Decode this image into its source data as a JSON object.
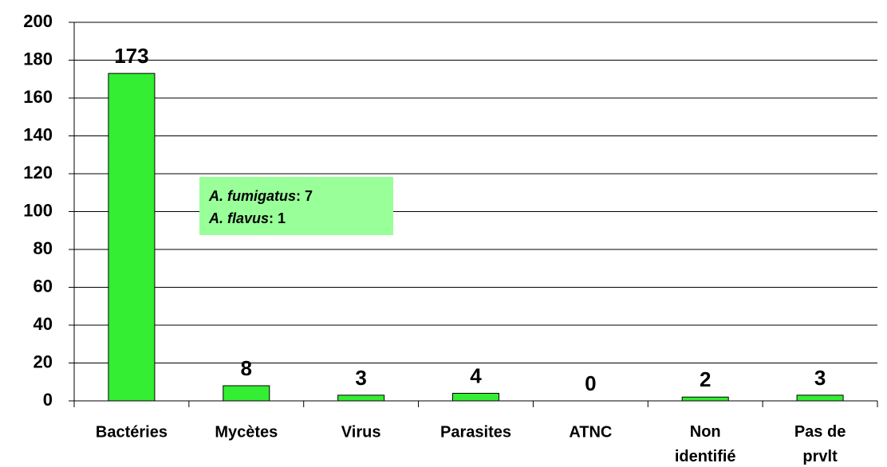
{
  "chart_data": {
    "type": "bar",
    "categories": [
      "Bactéries",
      "Mycètes",
      "Virus",
      "Parasites",
      "ATNC",
      "Non\nidentifié",
      "Pas de\nprvlt"
    ],
    "values": [
      173,
      8,
      3,
      4,
      0,
      2,
      3
    ],
    "color": "#33ee33",
    "ylim": [
      0,
      200
    ],
    "yticks": [
      0,
      20,
      40,
      60,
      80,
      100,
      120,
      140,
      160,
      180,
      200
    ],
    "grid": true,
    "annotation": [
      {
        "italic": "A. fumigatus",
        "text": ": 7"
      },
      {
        "italic": "A. flavus",
        "text": ": 1"
      }
    ]
  }
}
